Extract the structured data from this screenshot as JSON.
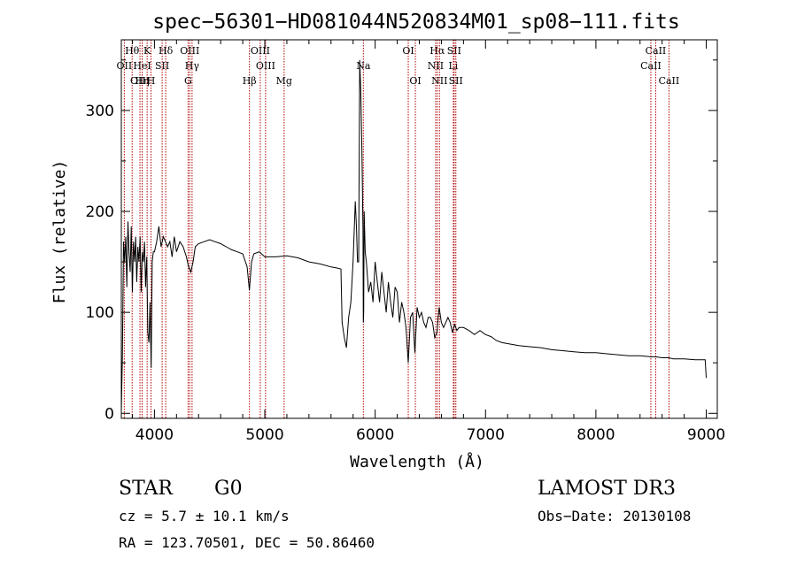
{
  "chart_data": {
    "type": "line",
    "title": "spec−56301−HD081044N520834M01_sp08−111.fits",
    "xlabel": "Wavelength (Å)",
    "ylabel": "Flux (relative)",
    "xlim": [
      3700,
      9100
    ],
    "ylim": [
      -5,
      370
    ],
    "xticks": [
      4000,
      5000,
      6000,
      7000,
      8000,
      9000
    ],
    "yticks": [
      0,
      100,
      200,
      300
    ],
    "grid": false,
    "lines": [
      {
        "label": "Hθ",
        "x": 3798,
        "row": 0
      },
      {
        "label": "OII",
        "x": 3727,
        "row": 1
      },
      {
        "label": "OIII",
        "x": 3869,
        "row": 2
      },
      {
        "label": "HeI",
        "x": 3889,
        "row": 1
      },
      {
        "label": "Hη",
        "x": 3889,
        "row": 2
      },
      {
        "label": "K",
        "x": 3934,
        "row": 0
      },
      {
        "label": "SII",
        "x": 4070,
        "row": 1
      },
      {
        "label": "H",
        "x": 3969,
        "row": 2
      },
      {
        "label": "Hδ",
        "x": 4102,
        "row": 0
      },
      {
        "label": "OIII",
        "x": 4320,
        "row": 0
      },
      {
        "label": "Hγ",
        "x": 4341,
        "row": 1
      },
      {
        "label": "G",
        "x": 4305,
        "row": 2
      },
      {
        "label": "Hβ",
        "x": 4861,
        "row": 2
      },
      {
        "label": "OIII",
        "x": 4959,
        "row": 0
      },
      {
        "label": "OIII",
        "x": 5007,
        "row": 1
      },
      {
        "label": "Mg",
        "x": 5175,
        "row": 2
      },
      {
        "label": "Na",
        "x": 5893,
        "row": 1
      },
      {
        "label": "OI",
        "x": 6300,
        "row": 0
      },
      {
        "label": "OI",
        "x": 6364,
        "row": 2
      },
      {
        "label": "Hα",
        "x": 6563,
        "row": 0
      },
      {
        "label": "SII",
        "x": 6716,
        "row": 0
      },
      {
        "label": "NII",
        "x": 6548,
        "row": 1
      },
      {
        "label": "Li",
        "x": 6708,
        "row": 1
      },
      {
        "label": "NII",
        "x": 6583,
        "row": 2
      },
      {
        "label": "SII",
        "x": 6731,
        "row": 2
      },
      {
        "label": "CaII",
        "x": 8542,
        "row": 0
      },
      {
        "label": "CaII",
        "x": 8498,
        "row": 1
      },
      {
        "label": "CaII",
        "x": 8662,
        "row": 2
      }
    ],
    "series": [
      {
        "x": [
          3700,
          3710,
          3720,
          3730,
          3740,
          3750,
          3760,
          3770,
          3780,
          3790,
          3800,
          3810,
          3820,
          3830,
          3840,
          3850,
          3860,
          3870,
          3880,
          3890,
          3900,
          3910,
          3920,
          3930,
          3940,
          3950,
          3960,
          3970,
          3980,
          3990,
          4000,
          4020,
          4040,
          4060,
          4080,
          4100,
          4120,
          4140,
          4160,
          4180,
          4200,
          4230,
          4260,
          4290,
          4310,
          4330,
          4350,
          4370,
          4400,
          4450,
          4500,
          4550,
          4600,
          4650,
          4700,
          4750,
          4800,
          4840,
          4860,
          4880,
          4900,
          4950,
          5000,
          5100,
          5200,
          5300,
          5400,
          5500,
          5600,
          5650,
          5690,
          5700,
          5720,
          5740,
          5760,
          5780,
          5800,
          5820,
          5830,
          5840,
          5850,
          5860,
          5870,
          5880,
          5890,
          5893,
          5896,
          5900,
          5910,
          5920,
          5940,
          5960,
          5980,
          6000,
          6020,
          6040,
          6060,
          6080,
          6100,
          6120,
          6140,
          6160,
          6180,
          6200,
          6220,
          6240,
          6260,
          6280,
          6300,
          6320,
          6340,
          6360,
          6380,
          6400,
          6420,
          6440,
          6460,
          6480,
          6500,
          6520,
          6540,
          6560,
          6580,
          6600,
          6620,
          6640,
          6660,
          6680,
          6700,
          6720,
          6740,
          6760,
          6800,
          6850,
          6900,
          6950,
          7000,
          7050,
          7100,
          7150,
          7200,
          7300,
          7400,
          7500,
          7600,
          7700,
          7800,
          7900,
          8000,
          8100,
          8200,
          8300,
          8400,
          8500,
          8540,
          8600,
          8660,
          8700,
          8800,
          8900,
          8980,
          8990,
          9000
        ],
        "y": [
          2,
          55,
          170,
          150,
          175,
          125,
          190,
          160,
          140,
          185,
          120,
          170,
          150,
          175,
          130,
          165,
          150,
          175,
          120,
          160,
          150,
          170,
          125,
          155,
          80,
          70,
          110,
          45,
          150,
          160,
          160,
          170,
          185,
          165,
          175,
          170,
          165,
          170,
          155,
          175,
          160,
          170,
          165,
          155,
          145,
          140,
          150,
          165,
          168,
          170,
          172,
          170,
          168,
          165,
          162,
          160,
          158,
          145,
          122,
          150,
          158,
          160,
          155,
          155,
          156,
          154,
          150,
          148,
          145,
          144,
          143,
          90,
          75,
          65,
          95,
          110,
          150,
          210,
          185,
          150,
          150,
          350,
          320,
          260,
          180,
          90,
          100,
          200,
          160,
          150,
          120,
          130,
          110,
          150,
          130,
          110,
          140,
          120,
          100,
          130,
          110,
          95,
          125,
          120,
          90,
          110,
          100,
          85,
          50,
          95,
          100,
          60,
          105,
          95,
          100,
          90,
          85,
          95,
          95,
          90,
          75,
          80,
          105,
          90,
          85,
          90,
          95,
          90,
          80,
          88,
          82,
          85,
          85,
          82,
          78,
          82,
          78,
          76,
          72,
          70,
          69,
          67,
          66,
          65,
          63,
          62,
          61,
          60,
          60,
          59,
          58,
          57,
          57,
          56,
          56,
          55,
          55,
          54,
          54,
          53,
          53,
          53,
          35
        ]
      }
    ]
  },
  "info": {
    "class": "STAR",
    "subclass": "G0",
    "survey": "LAMOST DR3",
    "cz": "cz = 5.7 ± 10.1 km/s",
    "obsdate": "Obs−Date: 20130108",
    "radec": "RA = 123.70501, DEC =  50.86460"
  }
}
